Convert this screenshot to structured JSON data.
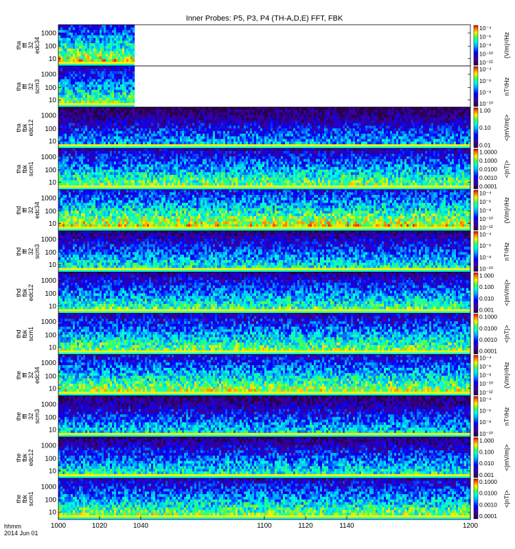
{
  "figure": {
    "title": "Inner Probes: P5, P3, P4 (TH-A,D,E) FFT, FBK",
    "footer_label": "hhmm",
    "footer_date": "2014 Jun 01"
  },
  "chart_data": {
    "type": "heatmap",
    "title": "Inner Probes: P5, P3, P4 (TH-A,D,E) FFT, FBK",
    "x": {
      "label": "hhmm",
      "date": "2014 Jun 01",
      "ticks": [
        "1000",
        "1020",
        "1040",
        "1100",
        "1120",
        "1140",
        "1200"
      ],
      "range": [
        1000,
        1200
      ]
    },
    "y_ticks": [
      "10",
      "100",
      "1000"
    ],
    "colorscale": "rainbow (purple-blue-cyan-green-yellow-red)",
    "panels": [
      {
        "label": [
          "tha",
          "fff",
          "32",
          "edc34"
        ],
        "cbar_ticks": [
          "10⁻⁴",
          "10⁻⁶",
          "10⁻⁸",
          "10⁻¹⁰",
          "10⁻¹²"
        ],
        "units": "(V/m)²/Hz",
        "data_end": 1037,
        "base": 0.55
      },
      {
        "label": [
          "tha",
          "fff",
          "32",
          "scm3"
        ],
        "cbar_ticks": [
          "10⁻⁴",
          "10⁻⁶",
          "10⁻⁸",
          "10⁻¹⁰"
        ],
        "units": "nT²/Hz",
        "data_end": 1037,
        "base": 0.45
      },
      {
        "label": [
          "tha",
          "fbk",
          "edc12"
        ],
        "cbar_ticks": [
          "1.00",
          "0.10",
          "0.01"
        ],
        "units": "<|mV/m|>",
        "data_end": 1200,
        "base": 0.25
      },
      {
        "label": [
          "tha",
          "fbk",
          "scm1"
        ],
        "cbar_ticks": [
          "1.0000",
          "0.1000",
          "0.0100",
          "0.0010",
          "0.0001"
        ],
        "units": "<|nT|>",
        "data_end": 1200,
        "base": 0.45
      },
      {
        "label": [
          "thd",
          "fff",
          "32",
          "edc34"
        ],
        "cbar_ticks": [
          "10⁻⁴",
          "10⁻⁶",
          "10⁻⁸",
          "10⁻¹⁰",
          "10⁻¹²"
        ],
        "units": "(V/m)²/Hz",
        "data_end": 1200,
        "base": 0.55
      },
      {
        "label": [
          "thd",
          "fff",
          "32",
          "scm3"
        ],
        "cbar_ticks": [
          "10⁻⁴",
          "10⁻⁶",
          "10⁻⁸",
          "10⁻¹⁰"
        ],
        "units": "nT²/Hz",
        "data_end": 1200,
        "base": 0.35
      },
      {
        "label": [
          "thd",
          "fbk",
          "edc12"
        ],
        "cbar_ticks": [
          "1.000",
          "0.100",
          "0.010",
          "0.001"
        ],
        "units": "<|mV/m|>",
        "data_end": 1200,
        "base": 0.4
      },
      {
        "label": [
          "thd",
          "fbk",
          "scm1"
        ],
        "cbar_ticks": [
          "0.1000",
          "0.0100",
          "0.0010",
          "0.0001"
        ],
        "units": "<|nT|>",
        "data_end": 1200,
        "base": 0.45
      },
      {
        "label": [
          "the",
          "fff",
          "32",
          "edc34"
        ],
        "cbar_ticks": [
          "10⁻⁴",
          "10⁻⁶",
          "10⁻⁸",
          "10⁻¹⁰",
          "10⁻¹²"
        ],
        "units": "(V/m)²/Hz",
        "data_end": 1200,
        "base": 0.5
      },
      {
        "label": [
          "the",
          "fff",
          "32",
          "scm3"
        ],
        "cbar_ticks": [
          "10⁻⁴",
          "10⁻⁶",
          "10⁻⁸",
          "10⁻¹⁰"
        ],
        "units": "nT²/Hz",
        "data_end": 1200,
        "base": 0.3
      },
      {
        "label": [
          "the",
          "fbk",
          "edc12"
        ],
        "cbar_ticks": [
          "1.000",
          "0.100",
          "0.010",
          "0.001"
        ],
        "units": "<|mV/m|>",
        "data_end": 1200,
        "base": 0.35
      },
      {
        "label": [
          "the",
          "fbk",
          "scm1"
        ],
        "cbar_ticks": [
          "0.1000",
          "0.0100",
          "0.0010",
          "0.0001"
        ],
        "units": "<|nT|>",
        "data_end": 1200,
        "base": 0.45
      }
    ]
  }
}
